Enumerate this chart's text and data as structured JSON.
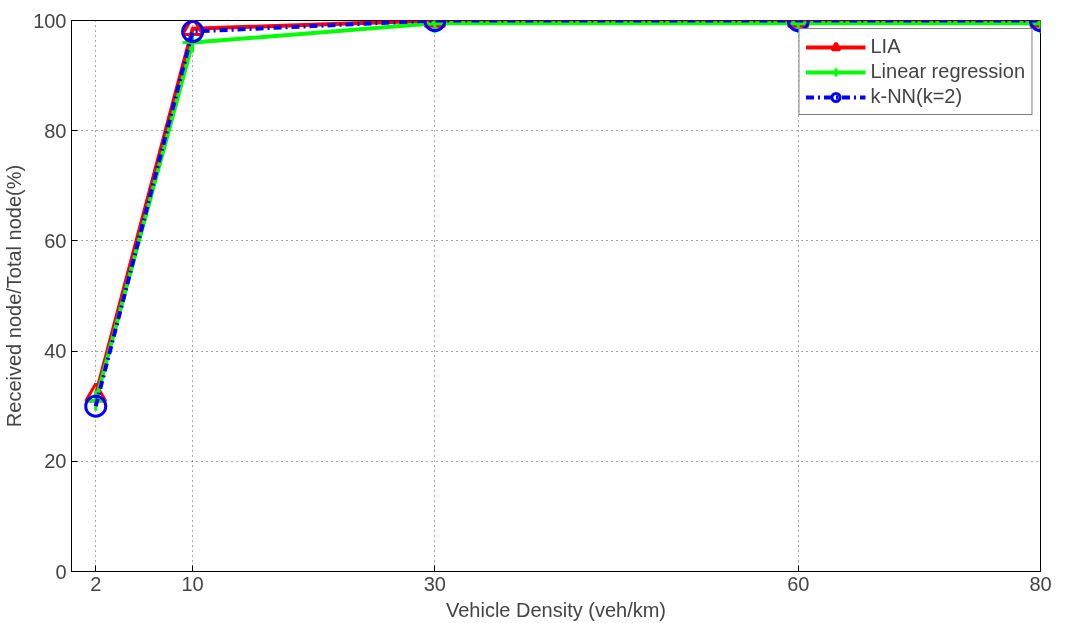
{
  "chart_data": {
    "type": "line",
    "xlabel": "Vehicle Density (veh/km)",
    "ylabel": "Received node/Total node(%)",
    "x": [
      2,
      10,
      30,
      60,
      80
    ],
    "series": [
      {
        "name": "LIA",
        "color": "#ff0000",
        "marker": "triangle",
        "line_style": "solid",
        "values": [
          32,
          98.5,
          100,
          100,
          100
        ]
      },
      {
        "name": "Linear regression",
        "color": "#00ff00",
        "marker": "cross",
        "line_style": "solid",
        "values": [
          31,
          96,
          99.5,
          99.5,
          99.5
        ]
      },
      {
        "name": "k-NN(k=2)",
        "color": "#0000ff",
        "marker": "circle",
        "line_style": "dashed",
        "values": [
          30,
          98,
          100,
          100,
          100
        ]
      }
    ],
    "xlim": [
      0,
      80
    ],
    "ylim": [
      0,
      100
    ],
    "xticks": [
      2,
      10,
      30,
      60,
      80
    ],
    "yticks": [
      0,
      20,
      40,
      60,
      80,
      100
    ],
    "grid": true,
    "legend": "top right"
  }
}
